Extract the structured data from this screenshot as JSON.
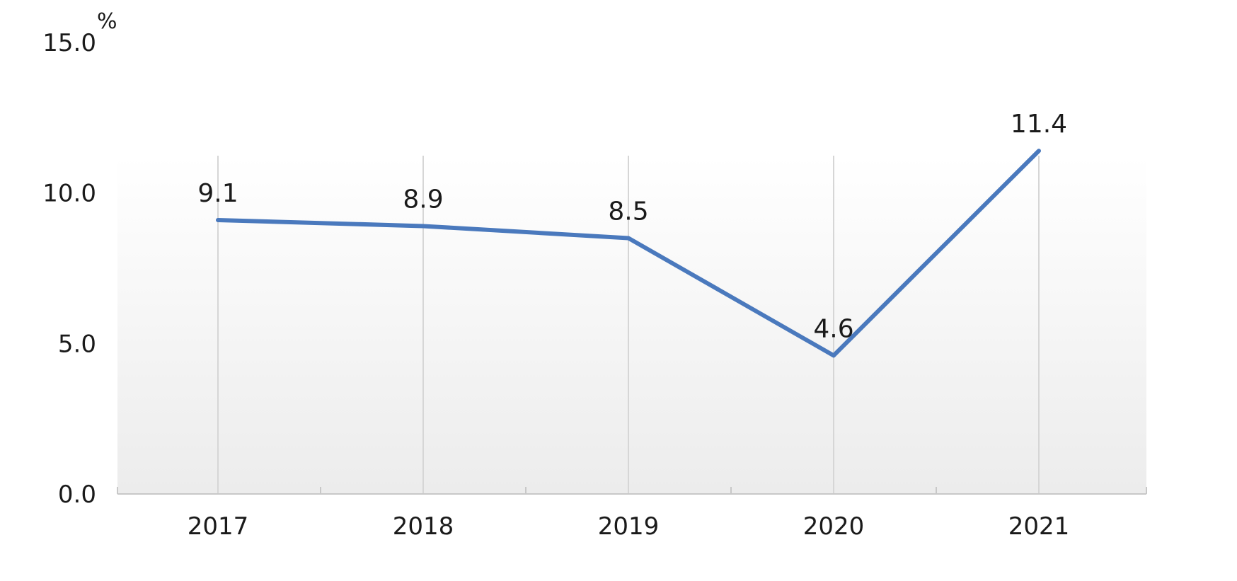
{
  "chart_data": {
    "type": "line",
    "title": "",
    "xlabel": "",
    "ylabel": "",
    "y_unit": "%",
    "categories": [
      "2017",
      "2018",
      "2019",
      "2020",
      "2021"
    ],
    "series": [
      {
        "values": [
          9.1,
          8.9,
          8.5,
          4.6,
          11.4
        ]
      }
    ],
    "data_labels": [
      "9.1",
      "8.9",
      "8.5",
      "4.6",
      "11.4"
    ],
    "ylim": [
      0,
      15
    ],
    "y_ticks": [
      "0.0",
      "5.0",
      "10.0",
      "15.0"
    ],
    "y_tick_values": [
      0,
      5,
      10,
      15
    ],
    "grid": "vertical",
    "legend": "none",
    "colors": {
      "series": "#4a79bd",
      "grid": "#d6d6d6",
      "axis": "#c8c8c8",
      "plot_bg_top": "#ffffff",
      "plot_bg_bottom": "#ececec"
    }
  }
}
